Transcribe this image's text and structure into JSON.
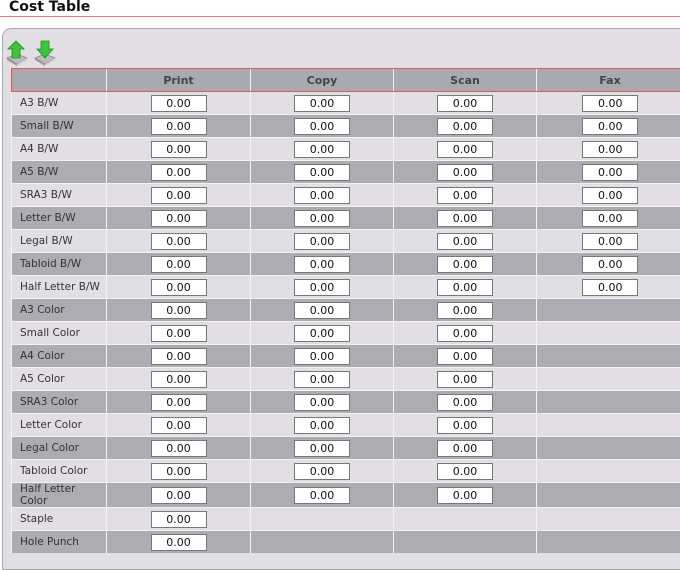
{
  "page_title": "Cost Table",
  "toolbar": {
    "import_icon": "upload-arrow-icon",
    "export_icon": "download-arrow-icon"
  },
  "columns": [
    "",
    "Print",
    "Copy",
    "Scan",
    "Fax"
  ],
  "colors": {
    "accent": "#e0575c",
    "row_light": "#e1dfe4",
    "row_dark": "#aeacb3"
  },
  "rows": [
    {
      "label": "A3 B/W",
      "values": [
        "0.00",
        "0.00",
        "0.00",
        "0.00"
      ]
    },
    {
      "label": "Small B/W",
      "values": [
        "0.00",
        "0.00",
        "0.00",
        "0.00"
      ]
    },
    {
      "label": "A4 B/W",
      "values": [
        "0.00",
        "0.00",
        "0.00",
        "0.00"
      ]
    },
    {
      "label": "A5 B/W",
      "values": [
        "0.00",
        "0.00",
        "0.00",
        "0.00"
      ]
    },
    {
      "label": "SRA3 B/W",
      "values": [
        "0.00",
        "0.00",
        "0.00",
        "0.00"
      ]
    },
    {
      "label": "Letter B/W",
      "values": [
        "0.00",
        "0.00",
        "0.00",
        "0.00"
      ]
    },
    {
      "label": "Legal B/W",
      "values": [
        "0.00",
        "0.00",
        "0.00",
        "0.00"
      ]
    },
    {
      "label": "Tabloid B/W",
      "values": [
        "0.00",
        "0.00",
        "0.00",
        "0.00"
      ]
    },
    {
      "label": "Half Letter B/W",
      "values": [
        "0.00",
        "0.00",
        "0.00",
        "0.00"
      ]
    },
    {
      "label": "A3 Color",
      "values": [
        "0.00",
        "0.00",
        "0.00",
        null
      ]
    },
    {
      "label": "Small Color",
      "values": [
        "0.00",
        "0.00",
        "0.00",
        null
      ]
    },
    {
      "label": "A4 Color",
      "values": [
        "0.00",
        "0.00",
        "0.00",
        null
      ]
    },
    {
      "label": "A5 Color",
      "values": [
        "0.00",
        "0.00",
        "0.00",
        null
      ]
    },
    {
      "label": "SRA3 Color",
      "values": [
        "0.00",
        "0.00",
        "0.00",
        null
      ]
    },
    {
      "label": "Letter Color",
      "values": [
        "0.00",
        "0.00",
        "0.00",
        null
      ]
    },
    {
      "label": "Legal Color",
      "values": [
        "0.00",
        "0.00",
        "0.00",
        null
      ]
    },
    {
      "label": "Tabloid Color",
      "values": [
        "0.00",
        "0.00",
        "0.00",
        null
      ]
    },
    {
      "label": "Half Letter Color",
      "values": [
        "0.00",
        "0.00",
        "0.00",
        null
      ]
    },
    {
      "label": "Staple",
      "values": [
        "0.00",
        null,
        null,
        null
      ]
    },
    {
      "label": "Hole Punch",
      "values": [
        "0.00",
        null,
        null,
        null
      ]
    }
  ]
}
